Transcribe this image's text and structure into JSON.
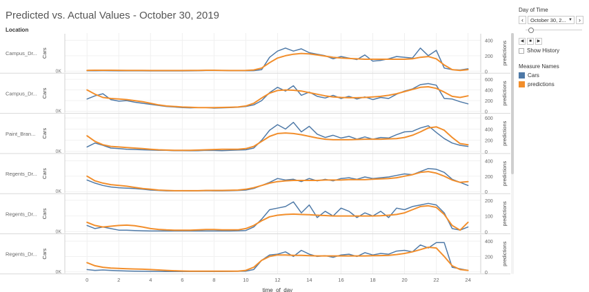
{
  "title": "Predicted vs. Actual Values - October 30, 2019",
  "location_header": "Location",
  "controls": {
    "day_title": "Day of Time",
    "day_value": "October 30, 2...",
    "show_history": "Show History",
    "legend_title": "Measure Names",
    "legend": [
      {
        "label": "Cars",
        "color": "#4e79a7"
      },
      {
        "label": "predictions",
        "color": "#f28e2b"
      }
    ]
  },
  "chart_data": {
    "type": "line",
    "xlabel": "time_of_day",
    "xlim": [
      -1.4,
      24.8
    ],
    "xticks": [
      0,
      2,
      4,
      6,
      8,
      10,
      12,
      14,
      16,
      18,
      20,
      22,
      24
    ],
    "x": [
      0,
      0.5,
      1,
      1.5,
      2,
      2.5,
      3,
      3.5,
      4,
      4.5,
      5,
      5.5,
      6,
      6.5,
      7,
      7.5,
      8,
      8.5,
      9,
      9.5,
      10,
      10.5,
      11,
      11.5,
      12,
      12.5,
      13,
      13.5,
      14,
      14.5,
      15,
      15.5,
      16,
      16.5,
      17,
      17.5,
      18,
      18.5,
      19,
      19.5,
      20,
      20.5,
      21,
      21.5,
      22,
      22.5,
      23,
      23.5,
      24
    ],
    "panels": [
      {
        "location": "Campus_Dr...",
        "left_axis_label": "Cars",
        "left_tick": "0K",
        "right_axis_label": "predictions",
        "ylim": [
          0,
          450
        ],
        "yticks": [
          0,
          200,
          400
        ],
        "series": [
          {
            "name": "Cars",
            "values": [
              5,
              5,
              6,
              5,
              4,
              5,
              4,
              4,
              3,
              3,
              3,
              3,
              3,
              4,
              5,
              8,
              10,
              8,
              5,
              5,
              5,
              6,
              20,
              180,
              260,
              300,
              260,
              290,
              240,
              220,
              200,
              160,
              190,
              170,
              150,
              210,
              130,
              140,
              160,
              190,
              180,
              170,
              300,
              200,
              270,
              40,
              20,
              15,
              30
            ]
          },
          {
            "name": "predictions",
            "values": [
              10,
              12,
              12,
              12,
              11,
              10,
              10,
              9,
              8,
              8,
              8,
              8,
              8,
              9,
              10,
              12,
              12,
              10,
              8,
              8,
              10,
              15,
              40,
              110,
              170,
              200,
              220,
              230,
              225,
              210,
              195,
              180,
              170,
              165,
              160,
              155,
              155,
              155,
              155,
              155,
              155,
              160,
              180,
              190,
              160,
              80,
              20,
              10,
              20
            ]
          }
        ]
      },
      {
        "location": "Campus_Dr...",
        "left_axis_label": "Cars",
        "left_tick": "0K",
        "right_axis_label": "predictions",
        "ylim": [
          0,
          650
        ],
        "yticks": [
          0,
          200,
          400,
          600
        ],
        "series": [
          {
            "name": "Cars",
            "values": [
              230,
              290,
              330,
              220,
              190,
              200,
              170,
              150,
              130,
              110,
              90,
              80,
              70,
              65,
              70,
              70,
              60,
              65,
              70,
              75,
              90,
              120,
              200,
              350,
              450,
              380,
              480,
              300,
              360,
              280,
              250,
              300,
              240,
              280,
              230,
              270,
              220,
              260,
              240,
              320,
              380,
              420,
              500,
              520,
              490,
              240,
              230,
              180,
              140
            ]
          },
          {
            "name": "predictions",
            "values": [
              400,
              320,
              260,
              240,
              230,
              220,
              200,
              180,
              150,
              120,
              100,
              90,
              80,
              75,
              70,
              70,
              70,
              72,
              75,
              80,
              100,
              150,
              250,
              340,
              390,
              400,
              395,
              380,
              350,
              320,
              290,
              270,
              260,
              255,
              255,
              260,
              270,
              280,
              300,
              330,
              370,
              410,
              450,
              460,
              430,
              360,
              280,
              260,
              290
            ]
          }
        ]
      },
      {
        "location": "Paint_Bran...",
        "left_axis_label": "Cars",
        "left_tick": "0K",
        "right_axis_label": "predictions",
        "ylim": [
          0,
          620
        ],
        "yticks": [
          0,
          200,
          400,
          600
        ],
        "series": [
          {
            "name": "Cars",
            "values": [
              80,
              150,
              110,
              60,
              50,
              40,
              35,
              30,
              25,
              20,
              20,
              15,
              15,
              12,
              15,
              20,
              18,
              15,
              20,
              25,
              30,
              60,
              200,
              380,
              480,
              400,
              520,
              350,
              450,
              310,
              250,
              290,
              240,
              270,
              220,
              260,
              220,
              250,
              240,
              300,
              350,
              360,
              420,
              460,
              340,
              230,
              150,
              110,
              90
            ]
          },
          {
            "name": "predictions",
            "values": [
              280,
              180,
              120,
              90,
              80,
              70,
              60,
              50,
              40,
              30,
              25,
              20,
              20,
              20,
              25,
              30,
              35,
              40,
              40,
              40,
              50,
              90,
              180,
              270,
              320,
              330,
              320,
              300,
              270,
              240,
              220,
              210,
              210,
              210,
              215,
              220,
              220,
              220,
              225,
              230,
              250,
              290,
              350,
              420,
              440,
              380,
              250,
              140,
              120
            ]
          }
        ]
      },
      {
        "location": "Regents_Dr...",
        "left_axis_label": "Cars",
        "left_tick": "0K",
        "right_axis_label": "predictions",
        "ylim": [
          0,
          450
        ],
        "yticks": [
          0,
          200,
          400
        ],
        "series": [
          {
            "name": "Cars",
            "values": [
              150,
              110,
              80,
              60,
              50,
              45,
              40,
              30,
              20,
              15,
              10,
              10,
              10,
              8,
              10,
              12,
              10,
              10,
              12,
              15,
              20,
              40,
              80,
              120,
              170,
              150,
              160,
              130,
              170,
              140,
              160,
              140,
              170,
              180,
              160,
              190,
              170,
              180,
              190,
              210,
              230,
              220,
              260,
              300,
              290,
              250,
              160,
              120,
              80
            ]
          },
          {
            "name": "predictions",
            "values": [
              200,
              140,
              110,
              90,
              80,
              70,
              55,
              40,
              30,
              20,
              15,
              12,
              12,
              12,
              12,
              15,
              15,
              15,
              18,
              20,
              30,
              50,
              80,
              110,
              130,
              140,
              145,
              145,
              145,
              145,
              150,
              150,
              150,
              155,
              155,
              155,
              160,
              165,
              170,
              180,
              200,
              220,
              250,
              260,
              240,
              200,
              150,
              120,
              130
            ]
          }
        ]
      },
      {
        "location": "Regents_Dr...",
        "left_axis_label": "Cars",
        "left_tick": "0K",
        "right_axis_label": "predictions",
        "ylim": [
          0,
          220
        ],
        "yticks": [
          0,
          100,
          200
        ],
        "series": [
          {
            "name": "Cars",
            "values": [
              40,
              20,
              30,
              20,
              10,
              10,
              8,
              6,
              5,
              5,
              5,
              5,
              5,
              5,
              5,
              5,
              5,
              5,
              5,
              6,
              8,
              30,
              80,
              140,
              150,
              160,
              190,
              120,
              170,
              90,
              130,
              100,
              150,
              130,
              90,
              120,
              100,
              130,
              90,
              150,
              140,
              160,
              170,
              180,
              170,
              120,
              20,
              10,
              30
            ]
          },
          {
            "name": "predictions",
            "values": [
              60,
              40,
              30,
              35,
              40,
              42,
              38,
              30,
              20,
              15,
              12,
              10,
              10,
              10,
              12,
              14,
              14,
              12,
              12,
              12,
              20,
              40,
              70,
              95,
              105,
              110,
              112,
              110,
              108,
              105,
              103,
              100,
              100,
              100,
              100,
              100,
              100,
              102,
              105,
              110,
              120,
              140,
              160,
              165,
              155,
              110,
              40,
              10,
              60
            ]
          }
        ]
      },
      {
        "location": "Regents_Dr...",
        "left_axis_label": "Cars",
        "left_tick": "0K",
        "right_axis_label": "predictions",
        "ylim": [
          0,
          450
        ],
        "yticks": [
          0,
          200,
          400
        ],
        "series": [
          {
            "name": "Cars",
            "values": [
              30,
              20,
              25,
              20,
              15,
              12,
              10,
              8,
              7,
              6,
              5,
              5,
              5,
              5,
              5,
              5,
              5,
              5,
              6,
              8,
              10,
              30,
              150,
              220,
              230,
              260,
              200,
              280,
              230,
              200,
              210,
              190,
              220,
              230,
              200,
              250,
              220,
              240,
              230,
              270,
              280,
              260,
              350,
              310,
              380,
              380,
              60,
              40,
              20
            ]
          },
          {
            "name": "predictions",
            "values": [
              120,
              80,
              60,
              50,
              45,
              40,
              38,
              35,
              30,
              25,
              20,
              15,
              12,
              10,
              10,
              10,
              10,
              10,
              10,
              10,
              20,
              60,
              150,
              200,
              220,
              220,
              215,
              215,
              210,
              208,
              208,
              208,
              208,
              208,
              208,
              208,
              210,
              212,
              215,
              225,
              240,
              260,
              290,
              320,
              310,
              200,
              80,
              30,
              20
            ]
          }
        ]
      }
    ]
  }
}
